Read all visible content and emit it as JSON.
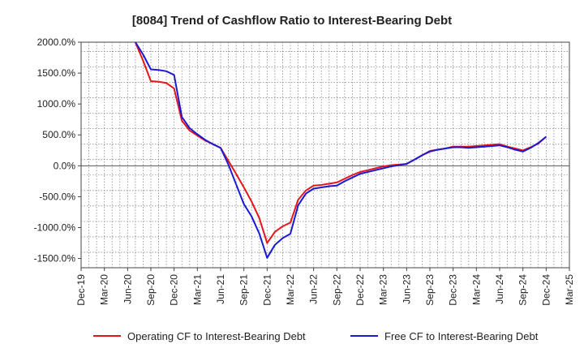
{
  "chart_data": {
    "type": "line",
    "title": "[8084]  Trend of Cashflow Ratio to Interest-Bearing Debt",
    "xlabel": "",
    "ylabel": "",
    "x_tick_labels": [
      "Dec-19",
      "Mar-20",
      "Jun-20",
      "Sep-20",
      "Dec-20",
      "Mar-21",
      "Jun-21",
      "Sep-21",
      "Dec-21",
      "Mar-22",
      "Jun-22",
      "Sep-22",
      "Dec-22",
      "Mar-23",
      "Jun-23",
      "Sep-23",
      "Dec-23",
      "Mar-24",
      "Jun-24",
      "Sep-24",
      "Dec-24",
      "Mar-25"
    ],
    "y_tick_labels": [
      "2000.0%",
      "1500.0%",
      "1000.0%",
      "500.0%",
      "0.0%",
      "-500.0%",
      "-1000.0%",
      "-1500.0%"
    ],
    "y_tick_values": [
      2000,
      1500,
      1000,
      500,
      0,
      -500,
      -1000,
      -1500
    ],
    "ylim": [
      -1650,
      2000
    ],
    "grid": true,
    "legend_position": "bottom",
    "x": [
      "Jul-20",
      "Aug-20",
      "Sep-20",
      "Oct-20",
      "Nov-20",
      "Dec-20",
      "Jan-21",
      "Feb-21",
      "Mar-21",
      "Apr-21",
      "May-21",
      "Jun-21",
      "Jul-21",
      "Aug-21",
      "Sep-21",
      "Oct-21",
      "Nov-21",
      "Dec-21",
      "Jan-22",
      "Feb-22",
      "Mar-22",
      "Apr-22",
      "May-22",
      "Jun-22",
      "Jul-22",
      "Aug-22",
      "Sep-22",
      "Oct-22",
      "Nov-22",
      "Dec-22",
      "Jan-23",
      "Feb-23",
      "Mar-23",
      "Apr-23",
      "May-23",
      "Jun-23",
      "Jul-23",
      "Aug-23",
      "Sep-23",
      "Oct-23",
      "Nov-23",
      "Dec-23",
      "Jan-24",
      "Feb-24",
      "Mar-24",
      "Apr-24",
      "May-24",
      "Jun-24",
      "Jul-24",
      "Aug-24",
      "Sep-24",
      "Oct-24",
      "Nov-24",
      "Dec-24"
    ],
    "series": [
      {
        "name": "Operating CF to Interest-Bearing Debt",
        "color": "#e8141c",
        "values": [
          2000,
          1700,
          1370,
          1360,
          1340,
          1250,
          730,
          570,
          490,
          410,
          350,
          290,
          80,
          -130,
          -350,
          -580,
          -850,
          -1250,
          -1070,
          -980,
          -920,
          -550,
          -400,
          -320,
          -310,
          -290,
          -270,
          -210,
          -150,
          -100,
          -70,
          -40,
          -10,
          10,
          20,
          30,
          100,
          170,
          240,
          260,
          280,
          310,
          310,
          310,
          320,
          330,
          340,
          350,
          310,
          280,
          250,
          300,
          360,
          470
        ],
        "values_note": "monthly readings"
      },
      {
        "name": "Free CF to Interest-Bearing Debt",
        "color": "#1a1ad4",
        "values": [
          2000,
          1800,
          1560,
          1550,
          1530,
          1470,
          790,
          610,
          510,
          420,
          350,
          290,
          20,
          -300,
          -620,
          -820,
          -1100,
          -1490,
          -1280,
          -1170,
          -1100,
          -640,
          -450,
          -370,
          -350,
          -330,
          -320,
          -250,
          -190,
          -130,
          -100,
          -70,
          -40,
          -10,
          10,
          30,
          100,
          170,
          230,
          260,
          280,
          300,
          300,
          290,
          300,
          310,
          320,
          330,
          300,
          260,
          230,
          290,
          370,
          470
        ]
      }
    ]
  }
}
